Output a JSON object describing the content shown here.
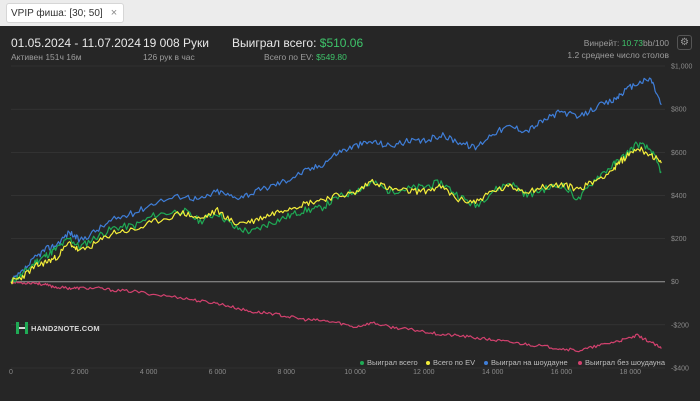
{
  "tab": {
    "label": "VPIP фиша: [30; 50]",
    "close": "×"
  },
  "header": {
    "date_range": "01.05.2024 - 11.07.2024",
    "active": "Активен 151ч 16м",
    "hands": "19 008 Руки",
    "hands_per_hour": "126 рук в час",
    "won_label": "Выиграл всего:",
    "won_value": "$510.06",
    "ev_label": "Всего по EV:",
    "ev_value": "$549.80",
    "rake_label": "Винрейт:",
    "rake_value": "10.73",
    "rake_suffix": "bb/100",
    "tables": "1.2 среднее число столов",
    "settings_icon": "⚙"
  },
  "logo": {
    "text": "HAND2NOTE.COM"
  },
  "colors": {
    "background": "#262626",
    "grid": "#3a3a3a",
    "zero_line": "#9a9a9a",
    "accent_green": "#3ec46a",
    "won": "#1faa55",
    "ev": "#f4ee3a",
    "showdown": "#3f7ed8",
    "non_showdown": "#d2416e"
  },
  "chart_data": {
    "type": "line",
    "xlabel": "",
    "ylabel": "",
    "xlim": [
      0,
      19008
    ],
    "ylim": [
      -400,
      1000
    ],
    "x_ticks": [
      0,
      2000,
      4000,
      6000,
      8000,
      10000,
      12000,
      14000,
      16000,
      18000
    ],
    "x_tick_labels": [
      "0",
      "2 000",
      "4 000",
      "6 000",
      "8 000",
      "10 000",
      "12 000",
      "14 000",
      "16 000",
      "18 000"
    ],
    "y_ticks": [
      1000,
      800,
      600,
      400,
      200,
      0,
      -200,
      -400
    ],
    "y_tick_labels": [
      "$1,000",
      "$800",
      "$600",
      "$400",
      "$200",
      "$0",
      "-$200",
      "-$400"
    ],
    "grid": true,
    "legend_position": "bottom-right",
    "series": [
      {
        "name": "Выиграл всего",
        "color_key": "won",
        "points": [
          [
            0,
            0
          ],
          [
            300,
            30
          ],
          [
            700,
            90
          ],
          [
            1000,
            120
          ],
          [
            1300,
            150
          ],
          [
            1700,
            200
          ],
          [
            2000,
            160
          ],
          [
            2500,
            210
          ],
          [
            3000,
            250
          ],
          [
            3600,
            260
          ],
          [
            4200,
            310
          ],
          [
            5000,
            330
          ],
          [
            5500,
            280
          ],
          [
            6000,
            320
          ],
          [
            6500,
            250
          ],
          [
            7000,
            230
          ],
          [
            7500,
            270
          ],
          [
            8000,
            300
          ],
          [
            8500,
            330
          ],
          [
            9000,
            340
          ],
          [
            9500,
            390
          ],
          [
            10000,
            420
          ],
          [
            10500,
            460
          ],
          [
            11000,
            420
          ],
          [
            11500,
            430
          ],
          [
            12000,
            440
          ],
          [
            12500,
            460
          ],
          [
            13000,
            400
          ],
          [
            13500,
            350
          ],
          [
            14000,
            420
          ],
          [
            14500,
            460
          ],
          [
            15000,
            400
          ],
          [
            15500,
            430
          ],
          [
            16000,
            450
          ],
          [
            16500,
            380
          ],
          [
            17000,
            480
          ],
          [
            17500,
            540
          ],
          [
            17800,
            580
          ],
          [
            18200,
            640
          ],
          [
            18600,
            610
          ],
          [
            18900,
            510
          ]
        ]
      },
      {
        "name": "Всего по EV",
        "color_key": "ev",
        "points": [
          [
            0,
            0
          ],
          [
            300,
            20
          ],
          [
            700,
            70
          ],
          [
            1000,
            90
          ],
          [
            1300,
            110
          ],
          [
            1700,
            180
          ],
          [
            2000,
            140
          ],
          [
            2500,
            180
          ],
          [
            3000,
            230
          ],
          [
            3600,
            240
          ],
          [
            4200,
            280
          ],
          [
            5000,
            320
          ],
          [
            5500,
            290
          ],
          [
            6000,
            330
          ],
          [
            6500,
            270
          ],
          [
            7000,
            280
          ],
          [
            7500,
            310
          ],
          [
            8000,
            340
          ],
          [
            8500,
            360
          ],
          [
            9000,
            380
          ],
          [
            9500,
            400
          ],
          [
            10000,
            410
          ],
          [
            10500,
            470
          ],
          [
            11000,
            430
          ],
          [
            11500,
            420
          ],
          [
            12000,
            420
          ],
          [
            12500,
            440
          ],
          [
            13000,
            380
          ],
          [
            13500,
            370
          ],
          [
            14000,
            420
          ],
          [
            14500,
            440
          ],
          [
            15000,
            420
          ],
          [
            15500,
            440
          ],
          [
            16000,
            450
          ],
          [
            16500,
            430
          ],
          [
            17000,
            470
          ],
          [
            17500,
            520
          ],
          [
            17800,
            570
          ],
          [
            18200,
            620
          ],
          [
            18600,
            590
          ],
          [
            18900,
            550
          ]
        ]
      },
      {
        "name": "Выиграл на шоудауне",
        "color_key": "showdown",
        "points": [
          [
            0,
            0
          ],
          [
            300,
            40
          ],
          [
            700,
            110
          ],
          [
            1000,
            150
          ],
          [
            1300,
            170
          ],
          [
            1700,
            230
          ],
          [
            2000,
            190
          ],
          [
            2500,
            240
          ],
          [
            3000,
            290
          ],
          [
            3600,
            320
          ],
          [
            4200,
            370
          ],
          [
            5000,
            400
          ],
          [
            5500,
            380
          ],
          [
            6000,
            420
          ],
          [
            6500,
            390
          ],
          [
            7000,
            410
          ],
          [
            7500,
            440
          ],
          [
            8000,
            470
          ],
          [
            8500,
            510
          ],
          [
            9000,
            540
          ],
          [
            9500,
            600
          ],
          [
            10000,
            630
          ],
          [
            10500,
            650
          ],
          [
            11000,
            630
          ],
          [
            11500,
            650
          ],
          [
            12000,
            650
          ],
          [
            12500,
            680
          ],
          [
            13000,
            650
          ],
          [
            13500,
            620
          ],
          [
            14000,
            690
          ],
          [
            14500,
            720
          ],
          [
            15000,
            700
          ],
          [
            15500,
            750
          ],
          [
            16000,
            790
          ],
          [
            16500,
            760
          ],
          [
            17000,
            810
          ],
          [
            17500,
            840
          ],
          [
            17800,
            880
          ],
          [
            18200,
            920
          ],
          [
            18600,
            940
          ],
          [
            18900,
            820
          ]
        ]
      },
      {
        "name": "Выиграл без шоудауна",
        "color_key": "non_showdown",
        "points": [
          [
            0,
            0
          ],
          [
            300,
            -5
          ],
          [
            700,
            -5
          ],
          [
            1000,
            -15
          ],
          [
            1300,
            -25
          ],
          [
            1700,
            -30
          ],
          [
            2000,
            -30
          ],
          [
            2500,
            -30
          ],
          [
            3000,
            -40
          ],
          [
            3600,
            -45
          ],
          [
            4200,
            -60
          ],
          [
            5000,
            -75
          ],
          [
            5500,
            -90
          ],
          [
            6000,
            -100
          ],
          [
            6500,
            -120
          ],
          [
            7000,
            -140
          ],
          [
            7500,
            -145
          ],
          [
            8000,
            -160
          ],
          [
            8500,
            -175
          ],
          [
            9000,
            -180
          ],
          [
            9500,
            -190
          ],
          [
            10000,
            -210
          ],
          [
            10500,
            -190
          ],
          [
            11000,
            -210
          ],
          [
            11500,
            -220
          ],
          [
            12000,
            -230
          ],
          [
            12500,
            -245
          ],
          [
            13000,
            -250
          ],
          [
            13500,
            -260
          ],
          [
            14000,
            -270
          ],
          [
            14500,
            -280
          ],
          [
            15000,
            -290
          ],
          [
            15500,
            -300
          ],
          [
            16000,
            -310
          ],
          [
            16500,
            -320
          ],
          [
            17000,
            -300
          ],
          [
            17500,
            -280
          ],
          [
            17800,
            -270
          ],
          [
            18200,
            -250
          ],
          [
            18600,
            -280
          ],
          [
            18900,
            -310
          ]
        ]
      }
    ]
  }
}
